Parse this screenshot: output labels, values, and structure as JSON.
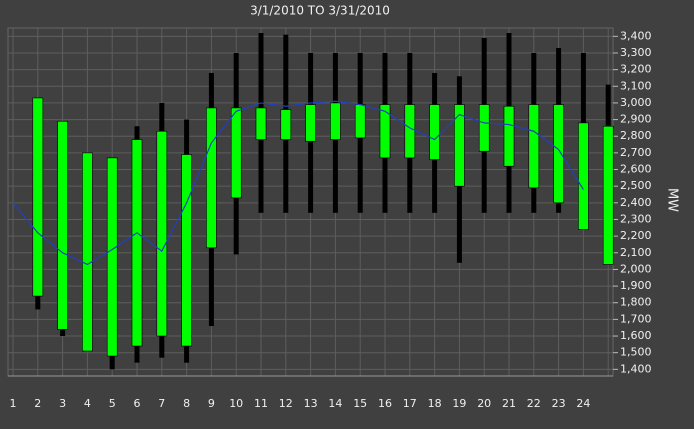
{
  "chart_data": {
    "type": "candlestick",
    "title": "3/1/2010 TO 3/31/2010",
    "y_label": "MW",
    "categories": [
      "1",
      "2",
      "3",
      "4",
      "5",
      "6",
      "7",
      "8",
      "9",
      "10",
      "11",
      "12",
      "13",
      "14",
      "15",
      "16",
      "17",
      "18",
      "19",
      "20",
      "21",
      "22",
      "23",
      "24",
      null
    ],
    "high": [
      null,
      3030,
      2890,
      2700,
      2670,
      2860,
      3000,
      2900,
      3180,
      3300,
      3420,
      3410,
      3300,
      3300,
      3300,
      3300,
      3300,
      3180,
      3160,
      3390,
      3420,
      3300,
      3330,
      3300,
      3110
    ],
    "open": [
      null,
      3030,
      2890,
      2700,
      2670,
      2780,
      2830,
      2690,
      2970,
      2970,
      2970,
      2960,
      2990,
      3000,
      2990,
      2990,
      2990,
      2990,
      2990,
      2990,
      2980,
      2990,
      2990,
      2880,
      2860
    ],
    "close": [
      null,
      1840,
      1640,
      1510,
      1480,
      1540,
      1600,
      1540,
      2130,
      2430,
      2780,
      2780,
      2770,
      2780,
      2790,
      2670,
      2670,
      2660,
      2500,
      2710,
      2620,
      2490,
      2400,
      2240,
      2030
    ],
    "low": [
      null,
      1760,
      1600,
      1510,
      1400,
      1440,
      1470,
      1440,
      1660,
      2090,
      2340,
      2340,
      2340,
      2340,
      2340,
      2340,
      2340,
      2340,
      2040,
      2340,
      2340,
      2340,
      2340,
      2240,
      2030
    ],
    "box_color": "#00ff00",
    "wick_color": "#000000",
    "line": {
      "color": "#2040c0",
      "values": [
        2400,
        2220,
        2100,
        2030,
        2120,
        2220,
        2110,
        2400,
        2760,
        2950,
        3000,
        2980,
        3000,
        3010,
        2990,
        2950,
        2850,
        2780,
        2930,
        2880,
        2870,
        2830,
        2720,
        2480,
        null
      ]
    },
    "ylim": [
      1360,
      3450
    ],
    "yticks": [
      {
        "value": 1400,
        "label": "1,400"
      },
      {
        "value": 1500,
        "label": "1,500"
      },
      {
        "value": 1600,
        "label": "1,600"
      },
      {
        "value": 1700,
        "label": "1,700"
      },
      {
        "value": 1800,
        "label": "1,800"
      },
      {
        "value": 1900,
        "label": "1,900"
      },
      {
        "value": 2000,
        "label": "2,000"
      },
      {
        "value": 2100,
        "label": "2,100"
      },
      {
        "value": 2200,
        "label": "2,200"
      },
      {
        "value": 2300,
        "label": "2,300"
      },
      {
        "value": 2400,
        "label": "2,400"
      },
      {
        "value": 2500,
        "label": "2,500"
      },
      {
        "value": 2600,
        "label": "2,600"
      },
      {
        "value": 2700,
        "label": "2,700"
      },
      {
        "value": 2800,
        "label": "2,800"
      },
      {
        "value": 2900,
        "label": "2,900"
      },
      {
        "value": 3000,
        "label": "3,000"
      },
      {
        "value": 3100,
        "label": "3,100"
      },
      {
        "value": 3200,
        "label": "3,200"
      },
      {
        "value": 3300,
        "label": "3,300"
      },
      {
        "value": 3400,
        "label": "3,400"
      }
    ],
    "grid": true
  }
}
